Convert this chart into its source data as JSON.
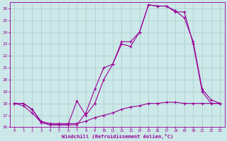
{
  "background_color": "#cce8e8",
  "grid_color": "#aacccc",
  "line_color": "#990099",
  "xlabel": "Windchill (Refroidissement éolien,°C)",
  "xlim": [
    -0.5,
    23.5
  ],
  "ylim": [
    16,
    26.5
  ],
  "yticks": [
    16,
    17,
    18,
    19,
    20,
    21,
    22,
    23,
    24,
    25,
    26
  ],
  "xticks": [
    0,
    1,
    2,
    3,
    4,
    5,
    6,
    7,
    8,
    9,
    10,
    11,
    12,
    13,
    14,
    15,
    16,
    17,
    18,
    19,
    20,
    21,
    22,
    23
  ],
  "line1_x": [
    0,
    1,
    2,
    3,
    4,
    5,
    6,
    7,
    8,
    9,
    10,
    11,
    12,
    13,
    14,
    15,
    16,
    17,
    18,
    19,
    20,
    21,
    22,
    23
  ],
  "line1_y": [
    18.0,
    18.0,
    17.5,
    16.4,
    16.2,
    16.2,
    16.2,
    16.2,
    17.2,
    19.2,
    21.0,
    21.3,
    23.2,
    23.2,
    24.0,
    26.3,
    26.2,
    26.2,
    25.7,
    25.7,
    23.0,
    19.0,
    18.0,
    18.0
  ],
  "line2_x": [
    0,
    1,
    2,
    3,
    4,
    5,
    6,
    7,
    8,
    9,
    10,
    11,
    12,
    13,
    14,
    15,
    16,
    17,
    18,
    19,
    20,
    21,
    22,
    23
  ],
  "line2_y": [
    18.0,
    17.8,
    17.2,
    16.4,
    16.2,
    16.2,
    16.2,
    18.2,
    17.0,
    18.0,
    20.0,
    21.3,
    23.0,
    22.8,
    24.0,
    26.3,
    26.2,
    26.2,
    25.8,
    25.2,
    23.2,
    19.2,
    18.3,
    18.0
  ],
  "line3_x": [
    0,
    1,
    2,
    3,
    4,
    5,
    6,
    7,
    8,
    9,
    10,
    11,
    12,
    13,
    14,
    15,
    16,
    17,
    18,
    19,
    20,
    21,
    22,
    23
  ],
  "line3_y": [
    18.0,
    18.0,
    17.5,
    16.5,
    16.3,
    16.3,
    16.3,
    16.3,
    16.5,
    16.8,
    17.0,
    17.2,
    17.5,
    17.7,
    17.8,
    18.0,
    18.0,
    18.1,
    18.1,
    18.0,
    18.0,
    18.0,
    18.0,
    18.0
  ]
}
